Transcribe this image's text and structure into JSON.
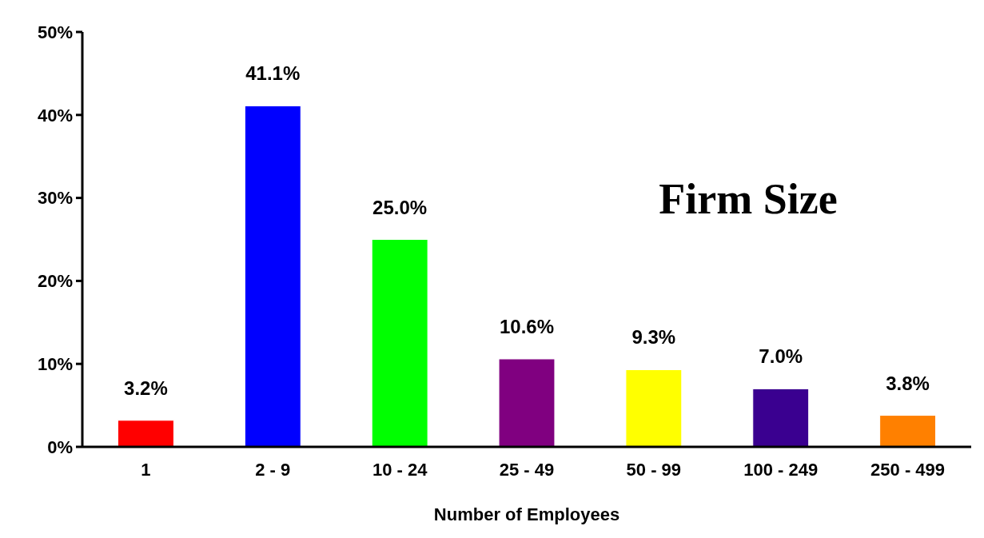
{
  "chart_data": {
    "type": "bar",
    "title": "Firm Size",
    "xlabel": "Number of Employees",
    "categories": [
      "1",
      "2 - 9",
      "10 - 24",
      "25 - 49",
      "50 - 99",
      "100 - 249",
      "250 - 499"
    ],
    "values": [
      3.2,
      41.1,
      25.0,
      10.6,
      9.3,
      7.0,
      3.8
    ],
    "colors": [
      "#ff0000",
      "#0000ff",
      "#00ff00",
      "#800080",
      "#ffff00",
      "#3a0090",
      "#ff8000"
    ],
    "value_labels": [
      "3.2%",
      "41.1%",
      "25.0%",
      "10.6%",
      "9.3%",
      "7.0%",
      "3.8%"
    ],
    "ylim": [
      0,
      50
    ],
    "yticks": [
      {
        "value": 0,
        "label": "0%"
      },
      {
        "value": 10,
        "label": "10%"
      },
      {
        "value": 20,
        "label": "20%"
      },
      {
        "value": 30,
        "label": "30%"
      },
      {
        "value": 40,
        "label": "40%"
      },
      {
        "value": 50,
        "label": "50%"
      }
    ],
    "grid": false
  }
}
